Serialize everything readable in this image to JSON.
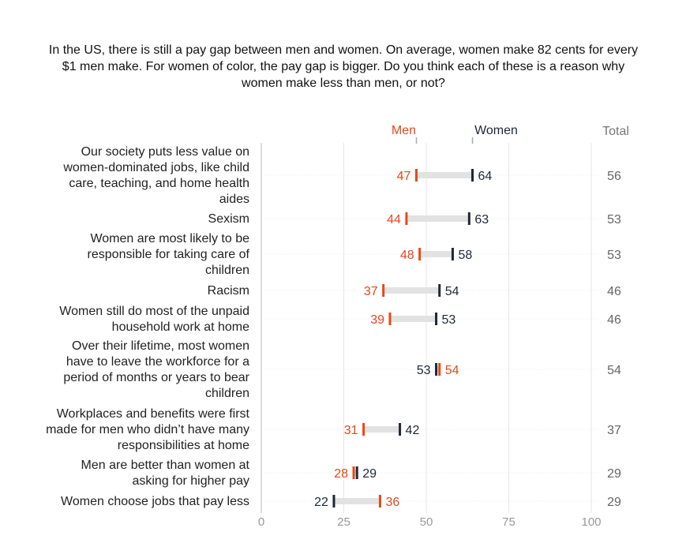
{
  "title": "In the US, there is still a pay gap between men and women. On average, women make 82 cents for every $1 men make. For women of color, the pay gap is bigger. Do you think each of these is a reason why women make less than men, or not?",
  "colors": {
    "men": "#e8471a",
    "women": "#1c2838",
    "bar": "#e2e2e2",
    "grid": "#e6e6e6",
    "label": "#222222",
    "total": "#666666",
    "tick": "#999999"
  },
  "chart_data": {
    "type": "dumbbell",
    "title": "In the US, there is still a pay gap between men and women. On average, women make 82 cents for every $1 men make. For women of color, the pay gap is bigger. Do you think each of these is a reason why women make less than men, or not?",
    "xlim": [
      0,
      100
    ],
    "xticks": [
      "0",
      "25",
      "50",
      "75",
      "100"
    ],
    "grid": true,
    "legend": {
      "men": "Men",
      "women": "Women",
      "total": "Total",
      "placement": "top"
    },
    "categories": [
      [
        "Our society puts less value on",
        "women-dominated jobs, like child",
        "care, teaching, and home health",
        "aides"
      ],
      [
        "Sexism"
      ],
      [
        "Women are most likely to be",
        "responsible for taking care of",
        "children"
      ],
      [
        "Racism"
      ],
      [
        "Women still do most of the unpaid",
        "household work at home"
      ],
      [
        "Over their lifetime, most women",
        "have to leave the workforce for a",
        "period of months or years to bear",
        "children"
      ],
      [
        "Workplaces and benefits were first",
        "made for men who didn’t have many",
        "responsibilities at home"
      ],
      [
        "Men are better than women at",
        "asking for higher pay"
      ],
      [
        "Women choose jobs that pay less"
      ]
    ],
    "series": [
      {
        "name": "Men",
        "values": [
          47,
          44,
          48,
          37,
          39,
          54,
          31,
          28,
          36
        ]
      },
      {
        "name": "Women",
        "values": [
          64,
          63,
          58,
          54,
          53,
          53,
          42,
          29,
          22
        ]
      },
      {
        "name": "Total",
        "values": [
          56,
          53,
          53,
          46,
          46,
          54,
          37,
          29,
          29
        ]
      }
    ]
  }
}
